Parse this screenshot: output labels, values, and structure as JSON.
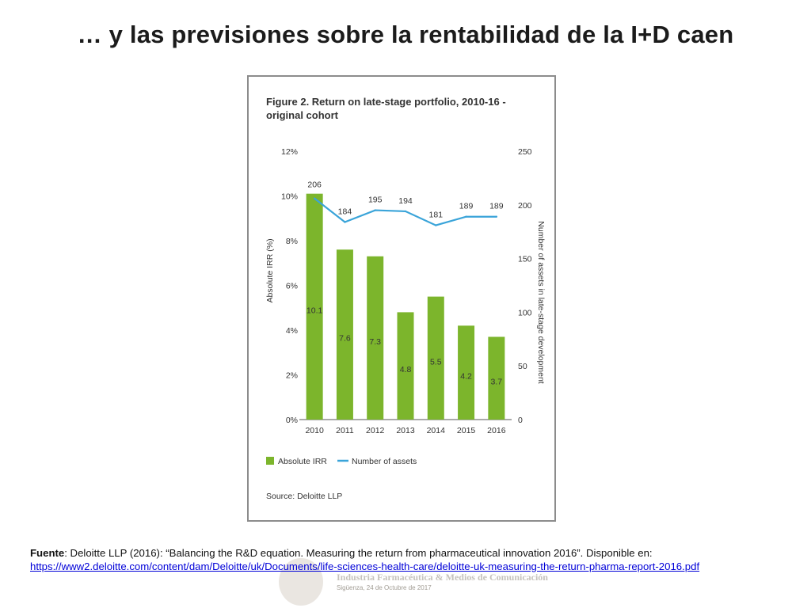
{
  "slide": {
    "title": "… y las previsiones sobre la rentabilidad de la I+D caen"
  },
  "footer": {
    "source_label": "Fuente",
    "source_text": ": Deloitte LLP (2016): “Balancing the R&D equation. Measuring the return from pharmaceutical innovation 2016”. Disponible en:",
    "url": "https://www2.deloitte.com/content/dam/Deloitte/uk/Documents/life-sciences-health-care/deloitte-uk-measuring-the-return-pharma-report-2016.pdf"
  },
  "watermark": {
    "line1": "Industria Farmacéutica & Medios de Comunicación",
    "line2": "Sigüenza, 24 de Octubre de 2017"
  },
  "colors": {
    "bar": "#7cb52c",
    "line": "#3aa4d9",
    "text": "#333333",
    "link": "#0000d8"
  },
  "chart_data": {
    "type": "bar",
    "title": "Figure 2. Return on late-stage portfolio, 2010-16 - original cohort",
    "title_lines": [
      "Figure 2. Return on late-stage portfolio, 2010-16 -",
      "original cohort"
    ],
    "categories": [
      "2010",
      "2011",
      "2012",
      "2013",
      "2014",
      "2015",
      "2016"
    ],
    "series": [
      {
        "name": "Absolute IRR",
        "type": "bar",
        "axis": "left",
        "values": [
          10.1,
          7.6,
          7.3,
          4.8,
          5.5,
          4.2,
          3.7
        ]
      },
      {
        "name": "Number of assets",
        "type": "line",
        "axis": "right",
        "values": [
          206,
          184,
          195,
          194,
          181,
          189,
          189
        ]
      }
    ],
    "bar_labels": [
      "10.1",
      "7.6",
      "7.3",
      "4.8",
      "5.5",
      "4.2",
      "3.7"
    ],
    "line_labels": [
      "206",
      "184",
      "195",
      "194",
      "181",
      "189",
      "189"
    ],
    "ylabel": "Absolute IRR (%)",
    "y2label": "Number of assets in late-stage development",
    "ylim": [
      0,
      12
    ],
    "y2lim": [
      0,
      250
    ],
    "yticks": [
      "0%",
      "2%",
      "4%",
      "6%",
      "8%",
      "10%",
      "12%"
    ],
    "y2ticks": [
      "0",
      "50",
      "100",
      "150",
      "200",
      "250"
    ],
    "grid": false,
    "legend_position": "bottom-left",
    "source": "Source: Deloitte LLP"
  }
}
